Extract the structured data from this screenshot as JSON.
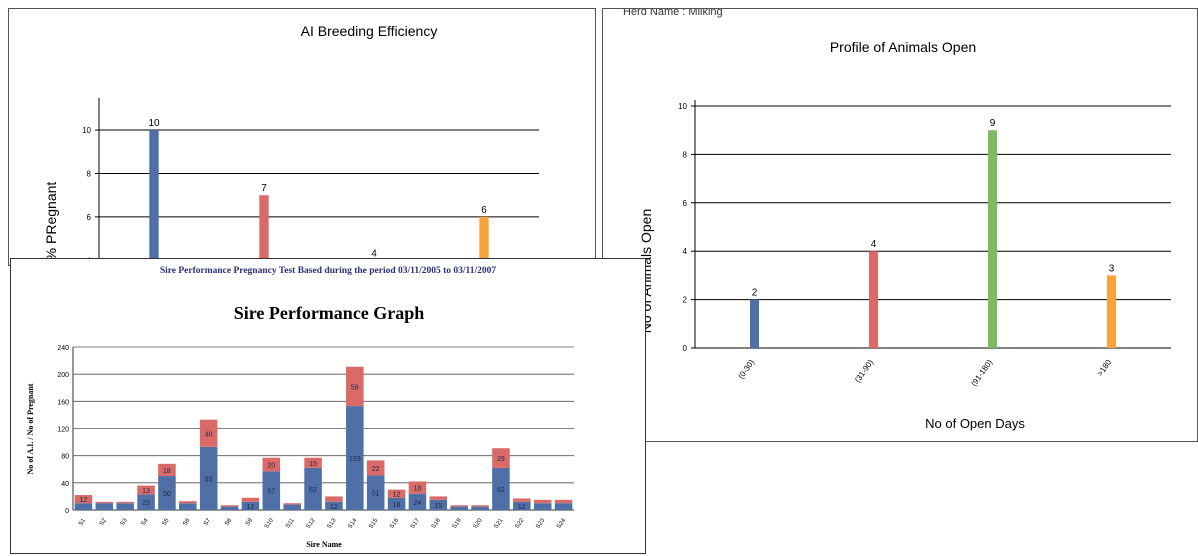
{
  "charts_meta": {
    "profile_header": "Herd Name : Milking",
    "sire_subtitle": "Sire Performance Pregnancy Test Based during the period  03/11/2005 to 03/11/2007"
  },
  "chart_data": [
    {
      "id": "ai",
      "type": "bar",
      "title": "AI Breeding Efficiency",
      "ylabel": "% PRegnant",
      "xlabel": "",
      "categories": [
        "",
        "",
        "",
        ""
      ],
      "values": [
        10,
        7,
        4,
        6
      ],
      "colors": [
        "#4f6fa6",
        "#d96a67",
        "#7dbb62",
        "#f9a23c"
      ],
      "ylim": [
        3.6,
        11.2
      ],
      "yticks": [
        4,
        6,
        8,
        10
      ],
      "grid": true,
      "legend": "none"
    },
    {
      "id": "open",
      "type": "bar",
      "title": "Profile of Animals Open",
      "ylabel": "No of Animals Open",
      "xlabel": "No of Open Days",
      "categories": [
        "(0-30)",
        "(31-90)",
        "(91-180)",
        ">180"
      ],
      "values": [
        2,
        4,
        9,
        3
      ],
      "colors": [
        "#4f6fa6",
        "#d96a67",
        "#7dbb62",
        "#f9a23c"
      ],
      "ylim": [
        0,
        10
      ],
      "yticks": [
        0,
        2,
        4,
        6,
        8,
        10
      ],
      "grid": true,
      "legend": "none"
    },
    {
      "id": "sire",
      "type": "bar",
      "stacked": true,
      "title": "Sire Performance Graph",
      "ylabel": "No of A.I. / No of Pregnant",
      "xlabel": "Sire Name",
      "categories": [
        "S1",
        "S2",
        "S3",
        "S4",
        "S5",
        "S6",
        "S7",
        "S8",
        "S9",
        "S10",
        "S11",
        "S12",
        "S13",
        "S14",
        "S15",
        "S16",
        "S17",
        "S18",
        "S19",
        "S20",
        "S21",
        "S22",
        "S23",
        "S24"
      ],
      "series": [
        {
          "values": [
            10,
            10,
            10,
            23,
            50,
            10,
            93,
            5,
            12,
            57,
            8,
            62,
            12,
            153,
            51,
            18,
            24,
            15,
            5,
            5,
            62,
            12,
            10,
            10
          ],
          "color": "#4f6fa6"
        },
        {
          "values": [
            12,
            2,
            2,
            13,
            18,
            3,
            40,
            2,
            6,
            20,
            2,
            15,
            8,
            58,
            22,
            12,
            18,
            5,
            2,
            2,
            29,
            5,
            5,
            5
          ],
          "color": "#d96a67"
        }
      ],
      "ylim": [
        0,
        240
      ],
      "yticks": [
        0,
        40,
        80,
        120,
        160,
        200,
        240
      ],
      "grid": true,
      "legend": "none"
    }
  ]
}
